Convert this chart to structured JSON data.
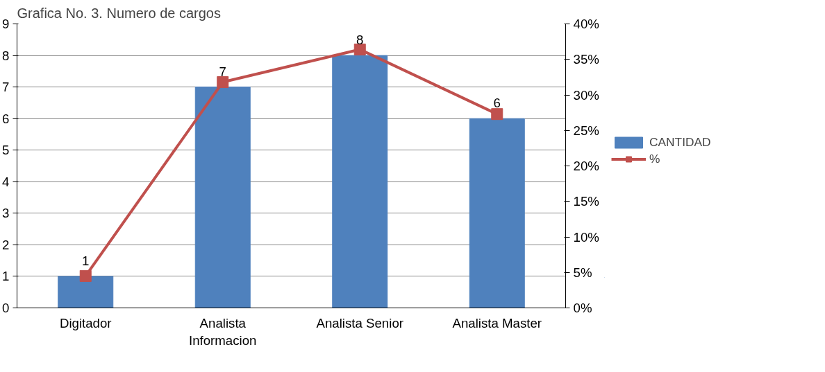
{
  "chart_data": {
    "type": "bar",
    "title": "Grafica No. 3. Numero de cargos",
    "categories": [
      "Digitador",
      "Analista Informacion",
      "Analista Senior",
      "Analista Master"
    ],
    "series": [
      {
        "name": "CANTIDAD",
        "color": "#4f81bd",
        "values": [
          1,
          7,
          8,
          6
        ],
        "value_labels": [
          "1",
          "7",
          "8",
          "6"
        ]
      },
      {
        "name": "%",
        "type": "line",
        "axis": "y2",
        "color": "#c0504d",
        "marker": "square",
        "values": [
          4.5,
          31.8,
          36.4,
          27.3
        ]
      }
    ],
    "ylim": [
      0,
      9
    ],
    "yticks": [
      0,
      1,
      2,
      3,
      4,
      5,
      6,
      7,
      8,
      9
    ],
    "y2lim": [
      0,
      40
    ],
    "y2ticks": [
      {
        "value": 0,
        "label": "0%"
      },
      {
        "value": 5,
        "label": "5%"
      },
      {
        "value": 10,
        "label": "10%"
      },
      {
        "value": 15,
        "label": "15%"
      },
      {
        "value": 20,
        "label": "20%"
      },
      {
        "value": 25,
        "label": "25%"
      },
      {
        "value": 30,
        "label": "30%"
      },
      {
        "value": 35,
        "label": "35%"
      },
      {
        "value": 40,
        "label": "40%"
      }
    ],
    "grid": "y",
    "legend": "right"
  }
}
